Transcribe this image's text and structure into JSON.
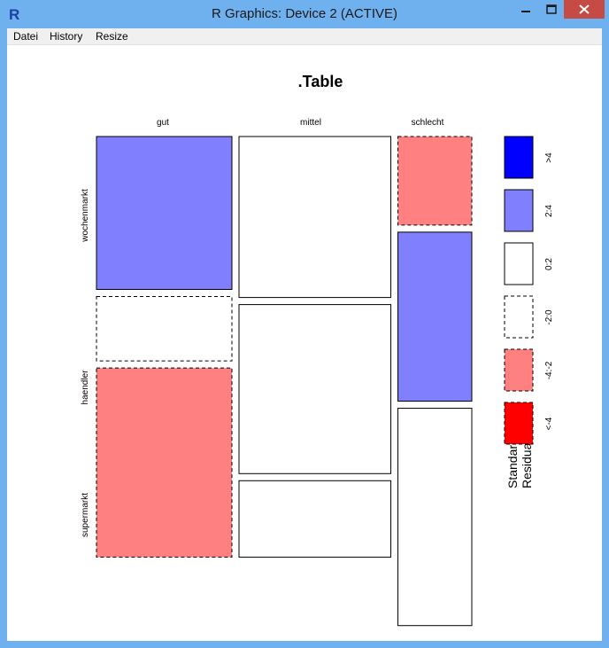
{
  "window": {
    "title": "R Graphics: Device 2 (ACTIVE)"
  },
  "menu": {
    "items": [
      "Datei",
      "History",
      "Resize"
    ]
  },
  "colors": {
    "titlebar": "#6fb0ee",
    "close": "#c74b45",
    "pos_high": "#0000ff",
    "pos_mid": "#8080ff",
    "neg_mid": "#ff8080",
    "neg_high": "#ff0000",
    "zero": "#ffffff"
  },
  "chart_data": {
    "type": "mosaic",
    "title": ".Table",
    "columns": [
      "gut",
      "mittel",
      "schlecht"
    ],
    "rows": [
      "wochenmarkt",
      "haendler",
      "supermarkt"
    ],
    "column_shares": [
      0.33,
      0.37,
      0.18
    ],
    "cell_shares": [
      [
        0.38,
        0.4,
        0.22
      ],
      [
        0.16,
        0.42,
        0.42
      ],
      [
        0.47,
        0.19,
        0.54
      ]
    ],
    "residual_class": [
      [
        "2:4",
        "0:2",
        "-4:-2"
      ],
      [
        "-2:0",
        "0:2",
        "2:4"
      ],
      [
        "-4:-2",
        "0:2",
        "0:2"
      ]
    ],
    "legend": {
      "title": "Standardized\nResiduals:",
      "items": [
        ">4",
        "2:4",
        "0:2",
        "-2:0",
        "-4:-2",
        "<-4"
      ]
    }
  }
}
